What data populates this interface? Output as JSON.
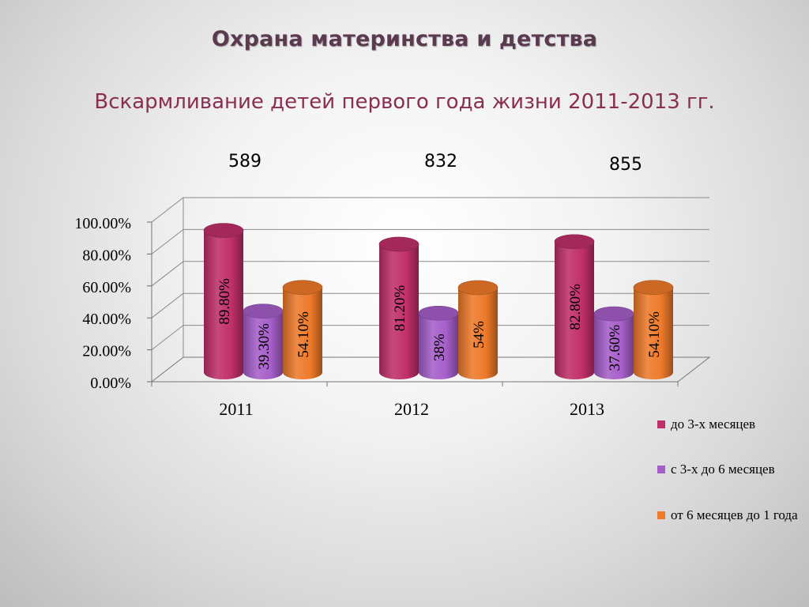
{
  "title": "Охрана материнства и детства",
  "subtitle": "Вскармливание детей первого года жизни 2011-2013 гг.",
  "counts": [
    "589",
    "832",
    "855"
  ],
  "colors": {
    "series1": "#c0306a",
    "series2": "#a65fc9",
    "series3": "#ee7a2a"
  },
  "chart_data": {
    "type": "bar",
    "categories": [
      "2011",
      "2012",
      "2013"
    ],
    "series": [
      {
        "name": "до 3-х месяцев",
        "values": [
          89.8,
          81.2,
          82.8
        ],
        "labels": [
          "89.80%",
          "81.20%",
          "82.80%"
        ]
      },
      {
        "name": "с 3-х до 6 месяцев",
        "values": [
          39.3,
          38,
          37.6
        ],
        "labels": [
          "39.30%",
          "38%",
          "37.60%"
        ]
      },
      {
        "name": "от 6 месяцев до 1 года",
        "values": [
          54.1,
          54,
          54.1
        ],
        "labels": [
          "54.10%",
          "54%",
          "54.10%"
        ]
      }
    ],
    "yticks": [
      "0.00%",
      "20.00%",
      "40.00%",
      "60.00%",
      "80.00%",
      "100.00%"
    ],
    "ylim": [
      0,
      100
    ],
    "grid": true,
    "legend": "right",
    "style": "3d-cylinder"
  }
}
